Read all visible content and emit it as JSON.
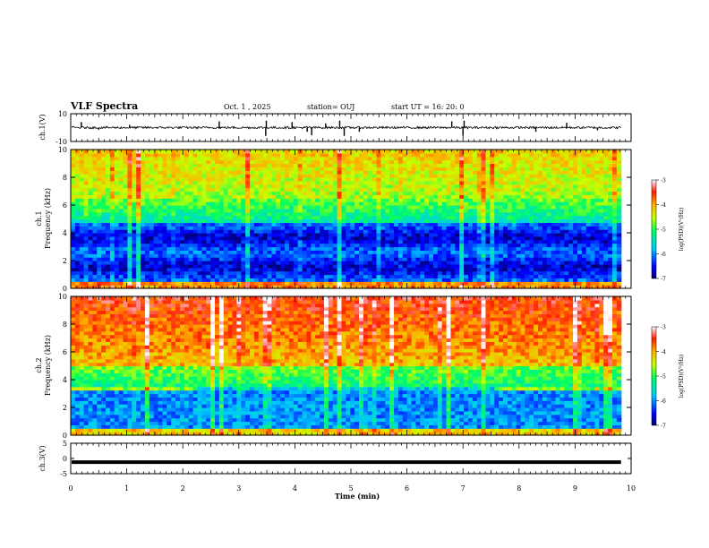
{
  "header": {
    "title": "VLF Spectra",
    "date": "Oct. 1 , 2025",
    "station": "station= OUJ",
    "start": "start UT = 16: 20: 0"
  },
  "chart_data": [
    {
      "type": "line",
      "panel": "ch1-waveform",
      "ylabel": "ch.1(V)",
      "ylim": [
        -10,
        10
      ],
      "yticks": [
        "10",
        "-10"
      ],
      "baseline": 0,
      "spikes": [
        {
          "x": 0.19,
          "y": 4
        },
        {
          "x": 0.5,
          "y": -1.5
        },
        {
          "x": 1.05,
          "y": 2
        },
        {
          "x": 2.65,
          "y": 4.5
        },
        {
          "x": 3.48,
          "y": -6
        },
        {
          "x": 3.49,
          "y": 5
        },
        {
          "x": 3.95,
          "y": 4
        },
        {
          "x": 4.22,
          "y": -3
        },
        {
          "x": 4.3,
          "y": -5.5
        },
        {
          "x": 4.55,
          "y": 3
        },
        {
          "x": 4.8,
          "y": 5
        },
        {
          "x": 4.88,
          "y": -6
        },
        {
          "x": 5.15,
          "y": -3
        },
        {
          "x": 6.8,
          "y": 4.5
        },
        {
          "x": 7.0,
          "y": -6
        },
        {
          "x": 7.02,
          "y": 5
        },
        {
          "x": 8.3,
          "y": -3
        },
        {
          "x": 8.85,
          "y": 3.5
        },
        {
          "x": 9.4,
          "y": -2
        }
      ]
    },
    {
      "type": "heatmap",
      "panel": "ch1-spectrogram",
      "ylabel": "ch.1",
      "ylabel2": "Frequency (kHz)",
      "ylim": [
        0,
        10
      ],
      "yticks": [
        "0",
        "2",
        "4",
        "6",
        "8",
        "10"
      ],
      "colorbar": {
        "label": "log(PSD)(V²/Hz)",
        "range": [
          -7,
          -3
        ],
        "ticks": [
          "-3",
          "-4",
          "-5",
          "-6",
          "-7"
        ]
      }
    },
    {
      "type": "heatmap",
      "panel": "ch2-spectrogram",
      "ylabel": "ch.2",
      "ylabel2": "Frequency (kHz)",
      "ylim": [
        0,
        10
      ],
      "yticks": [
        "0",
        "2",
        "4",
        "6",
        "8",
        "10"
      ],
      "colorbar": {
        "label": "log(PSD)(V²/Hz)",
        "range": [
          -7,
          -3
        ],
        "ticks": [
          "-3",
          "-4",
          "-5",
          "-6",
          "-7"
        ]
      }
    },
    {
      "type": "line",
      "panel": "ch3-waveform",
      "ylabel": "ch.3(V)",
      "ylim": [
        -5,
        5
      ],
      "yticks": [
        "5",
        "0",
        "-5"
      ],
      "level": -1.2
    }
  ],
  "xaxis": {
    "label": "Time (min)",
    "range": [
      0,
      10
    ],
    "ticks": [
      "0",
      "1",
      "2",
      "3",
      "4",
      "5",
      "6",
      "7",
      "8",
      "9",
      "10"
    ],
    "data_end": 9.82
  }
}
